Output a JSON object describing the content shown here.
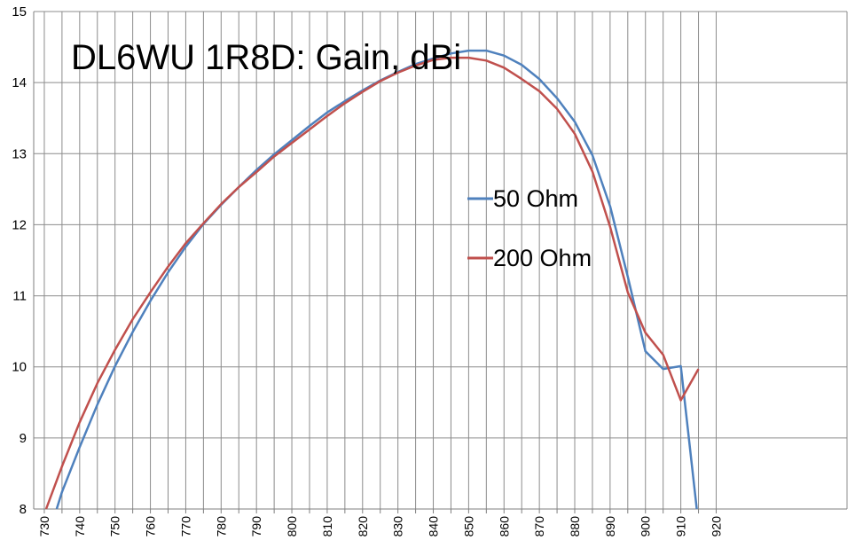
{
  "chart_data": {
    "type": "line",
    "title": "DL6WU 1R8D: Gain, dBi",
    "xlabel": "",
    "ylabel": "",
    "xlim": [
      727,
      957
    ],
    "ylim": [
      8,
      15
    ],
    "x_ticks": [
      730,
      735,
      740,
      745,
      750,
      755,
      760,
      765,
      770,
      775,
      780,
      785,
      790,
      795,
      800,
      805,
      810,
      815,
      820,
      825,
      830,
      835,
      840,
      845,
      850,
      855,
      860,
      865,
      870,
      875,
      880,
      885,
      890,
      895,
      900,
      905,
      910,
      915,
      920
    ],
    "x_tick_labels": [
      "730",
      "740",
      "750",
      "760",
      "770",
      "780",
      "790",
      "800",
      "810",
      "820",
      "830",
      "840",
      "850",
      "860",
      "870",
      "880",
      "890",
      "900",
      "910",
      "920"
    ],
    "y_ticks": [
      8,
      9,
      10,
      11,
      12,
      13,
      14,
      15
    ],
    "grid": true,
    "legend_position": "center-right",
    "series": [
      {
        "name": "50 Ohm",
        "color": "#4F81BD",
        "points": [
          [
            733.5,
            8.0
          ],
          [
            735,
            8.24
          ],
          [
            740,
            8.87
          ],
          [
            745,
            9.47
          ],
          [
            750,
            10.01
          ],
          [
            755,
            10.49
          ],
          [
            760,
            10.93
          ],
          [
            765,
            11.33
          ],
          [
            770,
            11.69
          ],
          [
            775,
            12.01
          ],
          [
            780,
            12.28
          ],
          [
            785,
            12.53
          ],
          [
            790,
            12.77
          ],
          [
            795,
            12.99
          ],
          [
            800,
            13.19
          ],
          [
            805,
            13.39
          ],
          [
            810,
            13.58
          ],
          [
            815,
            13.74
          ],
          [
            820,
            13.89
          ],
          [
            825,
            14.03
          ],
          [
            830,
            14.15
          ],
          [
            835,
            14.26
          ],
          [
            840,
            14.34
          ],
          [
            845,
            14.41
          ],
          [
            850,
            14.45
          ],
          [
            855,
            14.45
          ],
          [
            860,
            14.38
          ],
          [
            865,
            14.25
          ],
          [
            870,
            14.05
          ],
          [
            875,
            13.78
          ],
          [
            880,
            13.45
          ],
          [
            885,
            12.98
          ],
          [
            890,
            12.26
          ],
          [
            895,
            11.27
          ],
          [
            900,
            10.22
          ],
          [
            905,
            9.97
          ],
          [
            910,
            10.01
          ],
          [
            914.5,
            8.0
          ]
        ]
      },
      {
        "name": "200 Ohm",
        "color": "#C0504D",
        "points": [
          [
            730.5,
            8.0
          ],
          [
            735,
            8.6
          ],
          [
            740,
            9.22
          ],
          [
            745,
            9.77
          ],
          [
            750,
            10.24
          ],
          [
            755,
            10.67
          ],
          [
            760,
            11.05
          ],
          [
            765,
            11.41
          ],
          [
            770,
            11.74
          ],
          [
            775,
            12.02
          ],
          [
            780,
            12.29
          ],
          [
            785,
            12.53
          ],
          [
            790,
            12.74
          ],
          [
            795,
            12.96
          ],
          [
            800,
            13.15
          ],
          [
            805,
            13.34
          ],
          [
            810,
            13.53
          ],
          [
            815,
            13.71
          ],
          [
            820,
            13.87
          ],
          [
            825,
            14.02
          ],
          [
            830,
            14.14
          ],
          [
            835,
            14.24
          ],
          [
            840,
            14.32
          ],
          [
            845,
            14.35
          ],
          [
            850,
            14.35
          ],
          [
            855,
            14.31
          ],
          [
            860,
            14.21
          ],
          [
            865,
            14.05
          ],
          [
            870,
            13.88
          ],
          [
            875,
            13.63
          ],
          [
            880,
            13.28
          ],
          [
            885,
            12.75
          ],
          [
            890,
            11.97
          ],
          [
            895,
            11.05
          ],
          [
            900,
            10.48
          ],
          [
            905,
            10.17
          ],
          [
            910,
            9.53
          ],
          [
            915,
            9.97
          ]
        ]
      }
    ]
  }
}
